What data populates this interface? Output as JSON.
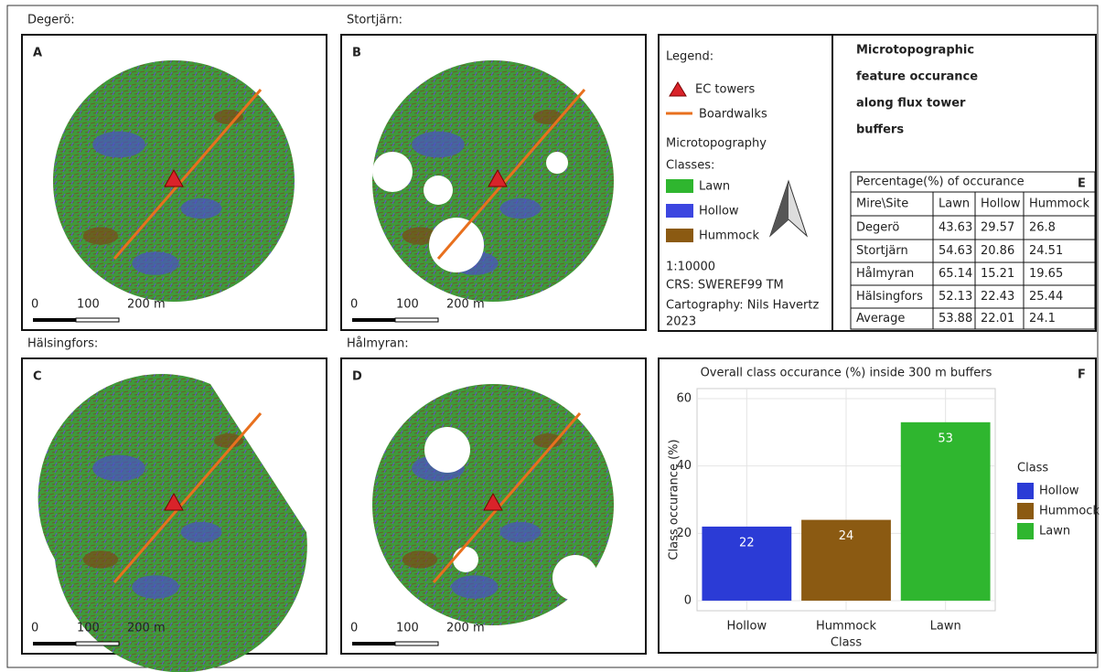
{
  "panels": [
    {
      "letter": "A",
      "site": "Degerö:",
      "scale": [
        "0",
        "100",
        "200 m"
      ]
    },
    {
      "letter": "B",
      "site": "Stortjärn:",
      "scale": [
        "0",
        "100",
        "200 m"
      ]
    },
    {
      "letter": "C",
      "site": "Hälsingfors:",
      "scale": [
        "0",
        "100",
        "200 m"
      ]
    },
    {
      "letter": "D",
      "site": "Hålmyran:",
      "scale": [
        "0",
        "100",
        "200 m"
      ]
    }
  ],
  "legend": {
    "title": "Legend:",
    "items": [
      "EC towers",
      "Boardwalks"
    ],
    "classes_title": [
      "Microtopography",
      "Classes:"
    ],
    "classes": [
      "Lawn",
      "Hollow",
      "Hummock"
    ],
    "scale": "1:10000",
    "crs": "CRS: SWEREF99 TM",
    "credit": [
      "Cartography: Nils Havertz",
      "2023"
    ]
  },
  "title": [
    "Microtopographic",
    "feature occurance",
    "along flux tower",
    "buffers"
  ],
  "table": {
    "caption": "Percentage(%) of occurance",
    "letter": "E",
    "header": [
      "Mire\\Site",
      "Lawn",
      "Hollow",
      "Hummock"
    ],
    "rows": [
      [
        "Degerö",
        "43.63",
        "29.57",
        "26.8"
      ],
      [
        "Stortjärn",
        "54.63",
        "20.86",
        "24.51"
      ],
      [
        "Hålmyran",
        "65.14",
        "15.21",
        "19.65"
      ],
      [
        "Hälsingfors",
        "52.13",
        "22.43",
        "25.44"
      ],
      [
        "Average",
        "53.88",
        "22.01",
        "24.1"
      ]
    ]
  },
  "chart_data": {
    "type": "bar",
    "letter": "F",
    "title": "Overall class occurance (%) inside 300 m buffers",
    "x_label": "Class",
    "y_label": "Class occurance (%)",
    "legend_title": "Class",
    "categories": [
      "Hollow",
      "Hummock",
      "Lawn"
    ],
    "values": [
      22,
      24,
      53
    ],
    "colors": [
      "#2b3bd6",
      "#8b5a12",
      "#2fb62f"
    ],
    "ylim": [
      -3,
      63
    ],
    "yticks": [
      0,
      20,
      40,
      60
    ],
    "grid": true
  }
}
